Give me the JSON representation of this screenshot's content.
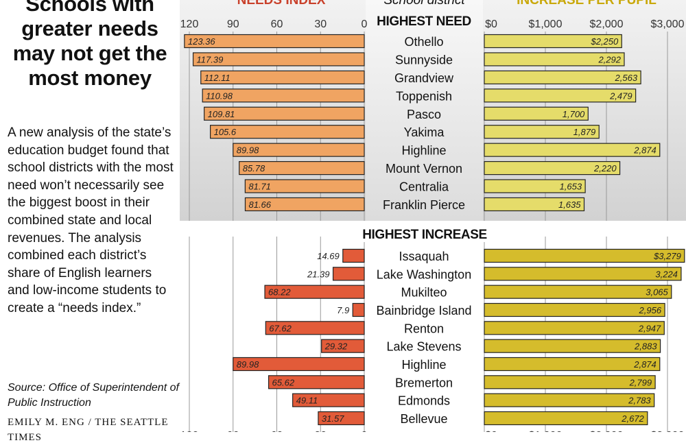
{
  "title": "Schools with greater needs may not get the most money",
  "description": "A new analysis of the state’s education budget found that school districts with the most need won’t necessarily see the biggest boost in their combined state and local revenues. The analysis combined each district’s share of English learners and low-income students to create a “needs index.”",
  "source": "Source: Office of Superintendent of Public Instruction",
  "credit": "EMILY M. ENG / THE SEATTLE TIMES",
  "chart_data": {
    "type": "bar",
    "headers": {
      "needs": "NEEDS INDEX",
      "district": "School district",
      "increase": "INCREASE PER PUPIL"
    },
    "needs_axis": {
      "ticks": [
        "120",
        "90",
        "60",
        "30",
        "0"
      ],
      "values": [
        120,
        90,
        60,
        30,
        0
      ],
      "range": [
        0,
        130
      ],
      "reversed": true
    },
    "increase_axis": {
      "ticks": [
        "$0",
        "$1,000",
        "$2,000",
        "$3,000"
      ],
      "values": [
        0,
        1000,
        2000,
        3000
      ],
      "range": [
        0,
        3300
      ]
    },
    "colors": {
      "needs_top": "#f0a462",
      "increase_top": "#e5dc6a",
      "needs_bottom": "#e25b39",
      "increase_bottom": "#d5bc2c",
      "needs_header": "#c9412b",
      "increase_header": "#c9a80a"
    },
    "groups": [
      {
        "label": "HIGHEST NEED",
        "rows": [
          {
            "district": "Othello",
            "needs": 123.36,
            "needs_label": "123.36",
            "increase": 2250,
            "increase_label": "$2,250"
          },
          {
            "district": "Sunnyside",
            "needs": 117.39,
            "needs_label": "117.39",
            "increase": 2292,
            "increase_label": "2,292"
          },
          {
            "district": "Grandview",
            "needs": 112.11,
            "needs_label": "112.11",
            "increase": 2563,
            "increase_label": "2,563"
          },
          {
            "district": "Toppenish",
            "needs": 110.98,
            "needs_label": "110.98",
            "increase": 2479,
            "increase_label": "2,479"
          },
          {
            "district": "Pasco",
            "needs": 109.81,
            "needs_label": "109.81",
            "increase": 1700,
            "increase_label": "1,700"
          },
          {
            "district": "Yakima",
            "needs": 105.6,
            "needs_label": "105.6",
            "increase": 1879,
            "increase_label": "1,879"
          },
          {
            "district": "Highline",
            "needs": 89.98,
            "needs_label": "89.98",
            "increase": 2874,
            "increase_label": "2,874"
          },
          {
            "district": "Mount Vernon",
            "needs": 85.78,
            "needs_label": "85.78",
            "increase": 2220,
            "increase_label": "2,220"
          },
          {
            "district": "Centralia",
            "needs": 81.71,
            "needs_label": "81.71",
            "increase": 1653,
            "increase_label": "1,653"
          },
          {
            "district": "Franklin Pierce",
            "needs": 81.66,
            "needs_label": "81.66",
            "increase": 1635,
            "increase_label": "1,635"
          }
        ]
      },
      {
        "label": "HIGHEST INCREASE",
        "rows": [
          {
            "district": "Issaquah",
            "needs": 14.69,
            "needs_label": "14.69",
            "increase": 3279,
            "increase_label": "$3,279"
          },
          {
            "district": "Lake Washington",
            "needs": 21.39,
            "needs_label": "21.39",
            "increase": 3224,
            "increase_label": "3,224"
          },
          {
            "district": "Mukilteo",
            "needs": 68.22,
            "needs_label": "68.22",
            "increase": 3065,
            "increase_label": "3,065"
          },
          {
            "district": "Bainbridge Island",
            "needs": 7.9,
            "needs_label": "7.9",
            "increase": 2956,
            "increase_label": "2,956"
          },
          {
            "district": "Renton",
            "needs": 67.62,
            "needs_label": "67.62",
            "increase": 2947,
            "increase_label": "2,947"
          },
          {
            "district": "Lake Stevens",
            "needs": 29.32,
            "needs_label": "29.32",
            "increase": 2883,
            "increase_label": "2,883"
          },
          {
            "district": "Highline",
            "needs": 89.98,
            "needs_label": "89.98",
            "increase": 2874,
            "increase_label": "2,874"
          },
          {
            "district": "Bremerton",
            "needs": 65.62,
            "needs_label": "65.62",
            "increase": 2799,
            "increase_label": "2,799"
          },
          {
            "district": "Edmonds",
            "needs": 49.11,
            "needs_label": "49.11",
            "increase": 2783,
            "increase_label": "2,783"
          },
          {
            "district": "Bellevue",
            "needs": 31.57,
            "needs_label": "31.57",
            "increase": 2672,
            "increase_label": "2,672"
          }
        ]
      }
    ]
  }
}
